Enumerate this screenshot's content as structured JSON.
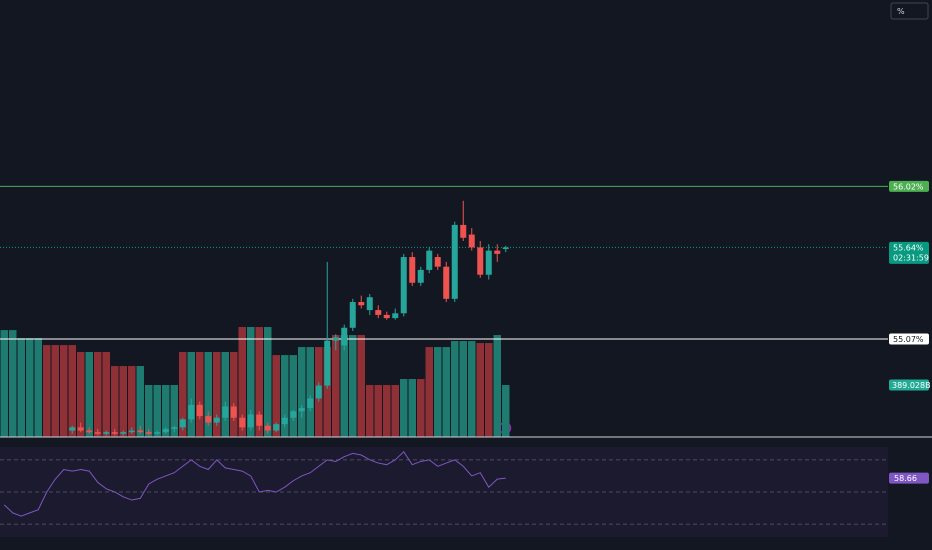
{
  "chart_data": {
    "type": "candlestick",
    "scale_button": "%",
    "ylim": [
      54.46,
      57.18
    ],
    "colors": {
      "up": "#26a69a",
      "down": "#ef5350"
    },
    "open": [
      null,
      null,
      null,
      null,
      null,
      null,
      null,
      null,
      54.5,
      54.52,
      54.5,
      54.49,
      54.48,
      54.49,
      54.48,
      54.49,
      54.5,
      54.49,
      54.48,
      54.49,
      54.51,
      54.52,
      54.57,
      54.66,
      54.59,
      54.55,
      54.58,
      54.65,
      54.58,
      54.52,
      54.6,
      54.53,
      54.5,
      54.54,
      54.58,
      54.62,
      54.64,
      54.7,
      54.78,
      55.06,
      55.03,
      55.14,
      55.3,
      55.25,
      55.25,
      55.22,
      55.2,
      55.23,
      55.58,
      55.42,
      55.5,
      55.58,
      55.52,
      55.32,
      55.78,
      55.72,
      55.64,
      55.47,
      55.62,
      55.63
    ],
    "high": [
      null,
      null,
      null,
      null,
      null,
      null,
      null,
      null,
      54.53,
      54.55,
      54.52,
      54.51,
      54.5,
      54.51,
      54.5,
      54.52,
      54.53,
      54.51,
      54.5,
      54.52,
      54.53,
      54.58,
      54.7,
      54.68,
      54.62,
      54.6,
      54.68,
      54.67,
      54.6,
      54.63,
      54.62,
      54.55,
      54.55,
      54.6,
      54.63,
      54.66,
      54.72,
      54.8,
      55.55,
      55.1,
      55.16,
      55.32,
      55.34,
      55.35,
      55.28,
      55.24,
      55.26,
      55.6,
      55.61,
      55.52,
      55.64,
      55.6,
      55.55,
      55.8,
      55.93,
      55.76,
      55.68,
      55.66,
      55.66,
      55.65
    ],
    "low": [
      null,
      null,
      null,
      null,
      null,
      null,
      null,
      null,
      54.48,
      54.49,
      54.48,
      54.47,
      54.47,
      54.47,
      54.47,
      54.48,
      54.48,
      54.47,
      54.47,
      54.48,
      54.49,
      54.5,
      54.55,
      54.57,
      54.53,
      54.53,
      54.56,
      54.56,
      54.5,
      54.5,
      54.5,
      54.48,
      54.49,
      54.52,
      54.56,
      54.58,
      54.62,
      54.68,
      54.76,
      55.0,
      55.0,
      55.12,
      55.26,
      55.22,
      55.2,
      55.19,
      55.19,
      55.21,
      55.4,
      55.4,
      55.48,
      55.5,
      55.3,
      55.3,
      55.68,
      55.62,
      55.45,
      55.44,
      55.55,
      55.61
    ],
    "close": [
      null,
      null,
      null,
      null,
      null,
      null,
      null,
      null,
      54.52,
      54.5,
      54.49,
      54.48,
      54.49,
      54.48,
      54.49,
      54.5,
      54.49,
      54.48,
      54.49,
      54.51,
      54.52,
      54.57,
      54.66,
      54.59,
      54.55,
      54.58,
      54.65,
      54.58,
      54.52,
      54.6,
      54.53,
      54.5,
      54.54,
      54.58,
      54.62,
      54.64,
      54.7,
      54.78,
      55.06,
      55.08,
      55.14,
      55.3,
      55.28,
      55.33,
      55.22,
      55.2,
      55.23,
      55.58,
      55.42,
      55.5,
      55.62,
      55.52,
      55.32,
      55.78,
      55.7,
      55.64,
      55.47,
      55.62,
      55.6,
      55.64
    ],
    "price_tags": [
      {
        "value": 56.02,
        "label": "56.02%",
        "color": "#4caf50",
        "line": "solid"
      },
      {
        "value": 55.64,
        "label": "55.64%",
        "countdown": "02:31:59",
        "color": "#089981",
        "line": "dotted"
      },
      {
        "value": 55.07,
        "label": "55.07%",
        "color": "#ffffff",
        "line": "solid"
      }
    ],
    "volume": {
      "ylim": [
        0,
        3270
      ],
      "tag": {
        "value": 389.028,
        "label": "389.028B",
        "color": "#22ab94"
      },
      "values": [
        800,
        800,
        740,
        740,
        740,
        688,
        688,
        688,
        688,
        636,
        636,
        636,
        636,
        531,
        531,
        531,
        531,
        389,
        389,
        389,
        389,
        636,
        636,
        636,
        636,
        636,
        636,
        636,
        823,
        823,
        823,
        823,
        613,
        613,
        613,
        673,
        673,
        673,
        673,
        763,
        763,
        763,
        763,
        389,
        389,
        389,
        389,
        434,
        434,
        434,
        673,
        673,
        673,
        718,
        718,
        718,
        703,
        703,
        763,
        389.028
      ],
      "colors": [
        "#1f7a70",
        "#1f7a70",
        "#1f7a70",
        "#1f7a70",
        "#1f7a70",
        "#8f3036",
        "#8f3036",
        "#8f3036",
        "#8f3036",
        "#8f3036",
        "#1f7a70",
        "#8f3036",
        "#8f3036",
        "#8f3036",
        "#8f3036",
        "#8f3036",
        "#1f7a70",
        "#1f7a70",
        "#1f7a70",
        "#1f7a70",
        "#1f7a70",
        "#8f3036",
        "#1f7a70",
        "#8f3036",
        "#1f7a70",
        "#8f3036",
        "#1f7a70",
        "#8f3036",
        "#8f3036",
        "#1f7a70",
        "#8f3036",
        "#1f7a70",
        "#8f3036",
        "#1f7a70",
        "#1f7a70",
        "#1f7a70",
        "#1f7a70",
        "#8f3036",
        "#8f3036",
        "#8f3036",
        "#1f7a70",
        "#1f7a70",
        "#8f3036",
        "#8f3036",
        "#8f3036",
        "#8f3036",
        "#8f3036",
        "#1f7a70",
        "#1f7a70",
        "#8f3036",
        "#8f3036",
        "#1f7a70",
        "#1f7a70",
        "#1f7a70",
        "#1f7a70",
        "#1f7a70",
        "#8f3036",
        "#8f3036",
        "#1f7a70",
        "#1f7a70"
      ]
    },
    "rsi": {
      "ylim": [
        22,
        78
      ],
      "bands": [
        70,
        50,
        30
      ],
      "color": "#7e57c2",
      "values": [
        42,
        37,
        35,
        37,
        39,
        50,
        58,
        64,
        63,
        64,
        63,
        56,
        52,
        50,
        47,
        45,
        46,
        55,
        58,
        60,
        62,
        66,
        70,
        66,
        64,
        70,
        65,
        64,
        63,
        60,
        50,
        51,
        50,
        53,
        57,
        60,
        62,
        66,
        70,
        69,
        72,
        74,
        73,
        70,
        68,
        67,
        70,
        75,
        67,
        69,
        70,
        66,
        68,
        70,
        66,
        60,
        62,
        53,
        58,
        58.66
      ]
    }
  }
}
